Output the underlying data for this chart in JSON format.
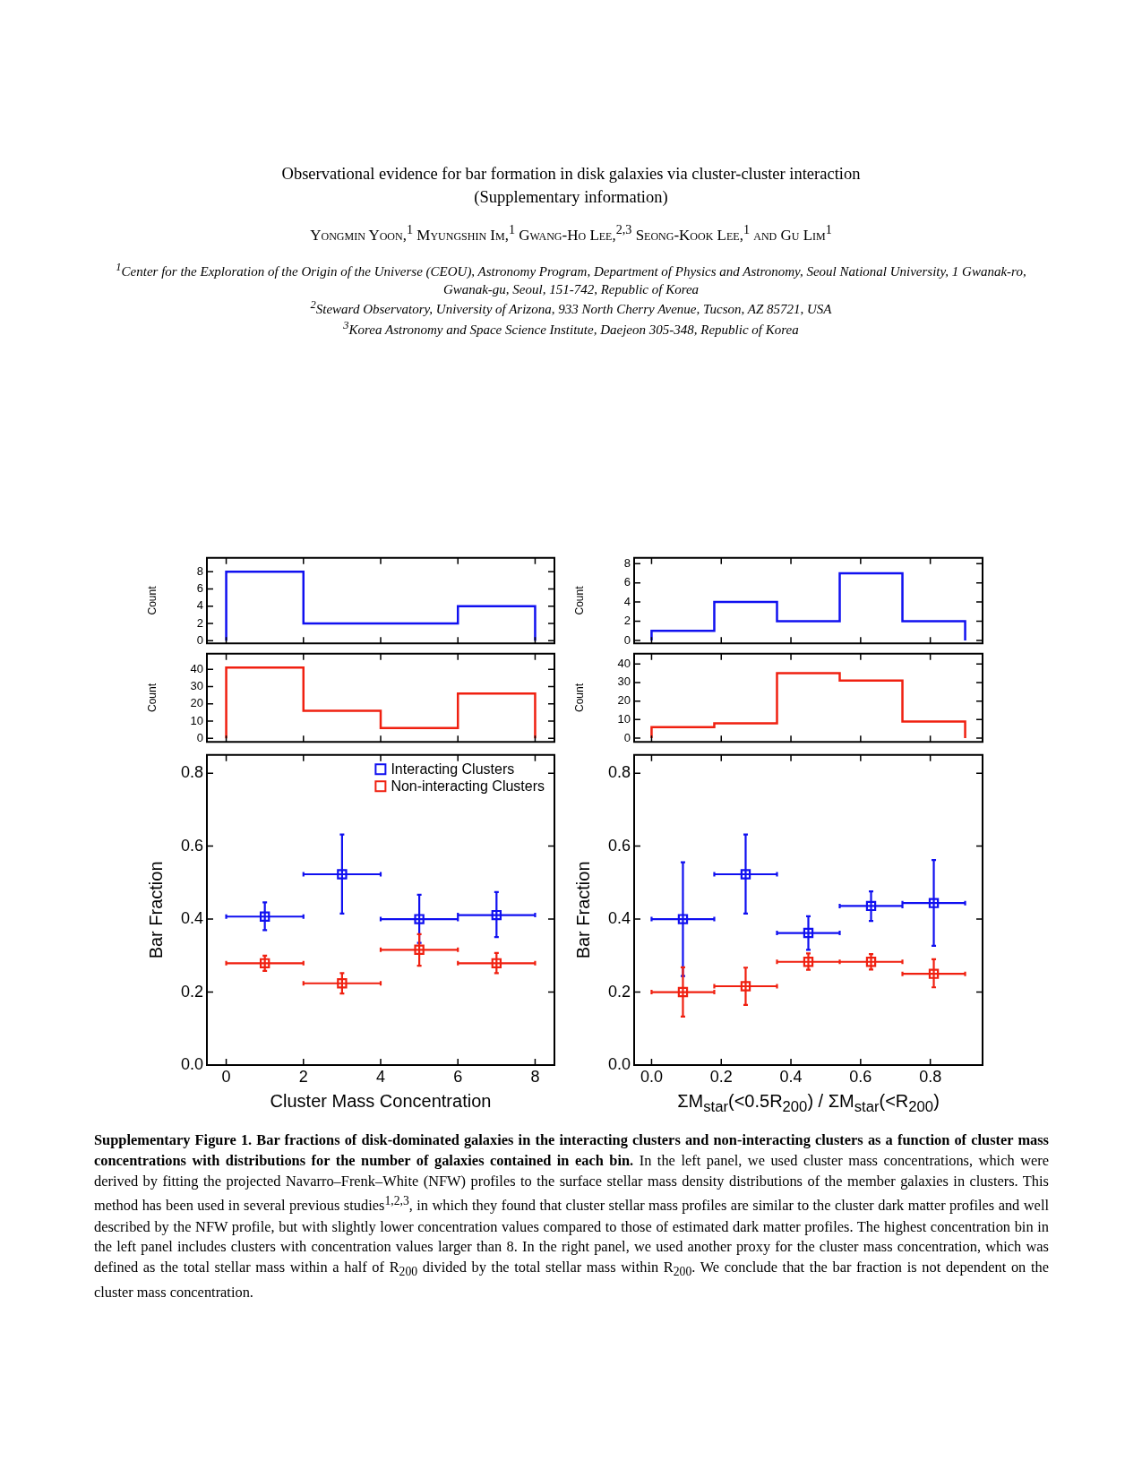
{
  "chart_data": [
    {
      "type": "other",
      "title": "Observational evidence for bar formation in disk galaxies via cluster-cluster interaction",
      "subtitle": "(Supplementary information)",
      "annotations": [
        "Yongmin Yoon,$^{1}$ Myungshin Im,$^{1}$ Gwang-Ho Lee,$^{2,3}$ Seong-Kook Lee,$^{1}$ and Gu Lim$^{1}$",
        "$^{1}$Center for the Exploration of the Origin of the Universe (CEOU), Astronomy Program, Department of Physics and Astronomy, Seoul National University, 1 Gwanak-ro, Gwanak-gu, Seoul, 151-742, Republic of Korea",
        "$^{2}$Steward Observatory, University of Arizona, 933 North Cherry Avenue, Tucson, AZ 85721, USA",
        "$^{3}$Korea Astronomy and Space Science Institute, Daejeon 305-348, Republic of Korea"
      ]
    },
    {
      "type": "histogram",
      "ylabel": "Count",
      "bins": [
        0,
        2,
        4,
        6,
        8
      ],
      "values": [
        8,
        2,
        2,
        4
      ],
      "color": "#1010f0",
      "xlim": [
        -0.5,
        8.5
      ],
      "xticks": [
        0,
        2,
        4,
        6,
        8
      ],
      "ylim": [
        -0.3,
        9.6
      ],
      "yticks": [
        0,
        2,
        4,
        6,
        8
      ],
      "tick_labels": "y"
    },
    {
      "type": "histogram",
      "ylabel": "Count",
      "bins": [
        0,
        0.18,
        0.36,
        0.54,
        0.72,
        0.9
      ],
      "values": [
        1,
        4,
        2,
        7,
        2
      ],
      "color": "#1010f0",
      "xlim": [
        -0.05,
        0.95
      ],
      "xticks": [
        0,
        0.2,
        0.4,
        0.6,
        0.8
      ],
      "ylim": [
        -0.3,
        8.6
      ],
      "yticks": [
        0,
        2,
        4,
        6,
        8
      ],
      "tick_labels": "y"
    },
    {
      "type": "histogram",
      "ylabel": "Count",
      "bins": [
        0,
        2,
        4,
        6,
        8
      ],
      "values": [
        41,
        16,
        6,
        26
      ],
      "color": "#f02010",
      "xlim": [
        -0.5,
        8.5
      ],
      "xticks": [
        0,
        2,
        4,
        6,
        8
      ],
      "ylim": [
        -2,
        49
      ],
      "yticks": [
        0,
        10,
        20,
        30,
        40
      ],
      "tick_labels": "y"
    },
    {
      "type": "histogram",
      "ylabel": "Count",
      "bins": [
        0,
        0.18,
        0.36,
        0.54,
        0.72,
        0.9
      ],
      "values": [
        6,
        8,
        35,
        31,
        9
      ],
      "color": "#f02010",
      "xlim": [
        -0.05,
        0.95
      ],
      "xticks": [
        0,
        0.2,
        0.4,
        0.6,
        0.8
      ],
      "ylim": [
        -2,
        45.5
      ],
      "yticks": [
        0,
        10,
        20,
        30,
        40
      ],
      "tick_labels": "y"
    },
    {
      "type": "scatter",
      "xlabel": "Cluster Mass Concentration",
      "ylabel": "Bar Fraction",
      "x": [
        1,
        3,
        5,
        7
      ],
      "marker": "square",
      "legend": "top right",
      "xlim": [
        -0.5,
        8.5
      ],
      "xticks": [
        0,
        2,
        4,
        6,
        8
      ],
      "ylim": [
        0,
        0.85
      ],
      "yticks": [
        {
          "value": 0,
          "label": "0.0"
        },
        {
          "value": 0.2,
          "label": "0.2"
        },
        {
          "value": 0.4,
          "label": "0.4"
        },
        {
          "value": 0.6,
          "label": "0.6"
        },
        {
          "value": 0.8,
          "label": "0.8"
        }
      ],
      "series": [
        {
          "name": "Interacting Clusters",
          "color": "#1010f0",
          "values": [
            0.407,
            0.523,
            0.4,
            0.411
          ],
          "errors": [
            [
              0.37,
              0.446
            ],
            [
              0.415,
              0.632
            ],
            [
              0.335,
              0.467
            ],
            [
              0.351,
              0.474
            ]
          ],
          "xerrors": [
            1,
            1,
            1,
            1
          ]
        },
        {
          "name": "Non-interacting Clusters",
          "color": "#f02010",
          "values": [
            0.279,
            0.224,
            0.316,
            0.279
          ],
          "errors": [
            [
              0.258,
              0.3
            ],
            [
              0.196,
              0.252
            ],
            [
              0.272,
              0.359
            ],
            [
              0.252,
              0.307
            ]
          ],
          "xerrors": [
            1,
            1,
            1,
            1
          ]
        }
      ]
    },
    {
      "type": "scatter",
      "xlabel": "ΣM$_{star}$(<0.5R$_{200}$) / ΣM$_{star}$(<R$_{200}$)",
      "ylabel": "Bar Fraction",
      "x": [
        0.09,
        0.27,
        0.45,
        0.63,
        0.81
      ],
      "marker": "square",
      "xlim": [
        -0.05,
        0.95
      ],
      "xticks": [
        {
          "value": 0,
          "label": "0.0"
        },
        {
          "value": 0.2,
          "label": "0.2"
        },
        {
          "value": 0.4,
          "label": "0.4"
        },
        {
          "value": 0.6,
          "label": "0.6"
        },
        {
          "value": 0.8,
          "label": "0.8"
        }
      ],
      "ylim": [
        0,
        0.85
      ],
      "yticks": [
        {
          "value": 0,
          "label": "0.0"
        },
        {
          "value": 0.2,
          "label": "0.2"
        },
        {
          "value": 0.4,
          "label": "0.4"
        },
        {
          "value": 0.6,
          "label": "0.6"
        },
        {
          "value": 0.8,
          "label": "0.8"
        }
      ],
      "series": [
        {
          "color": "#1010f0",
          "values": [
            0.4,
            0.523,
            0.362,
            0.436,
            0.444
          ],
          "errors": [
            [
              0.244,
              0.556
            ],
            [
              0.415,
              0.632
            ],
            [
              0.316,
              0.408
            ],
            [
              0.395,
              0.476
            ],
            [
              0.327,
              0.562
            ]
          ],
          "xerrors": [
            0.09,
            0.09,
            0.09,
            0.09,
            0.09
          ]
        },
        {
          "color": "#f02010",
          "values": [
            0.2,
            0.216,
            0.283,
            0.283,
            0.25
          ],
          "errors": [
            [
              0.133,
              0.268
            ],
            [
              0.165,
              0.267
            ],
            [
              0.261,
              0.306
            ],
            [
              0.262,
              0.304
            ],
            [
              0.213,
              0.29
            ]
          ],
          "xerrors": [
            0.09,
            0.09,
            0.09,
            0.09,
            0.09
          ]
        }
      ]
    },
    {
      "type": "other",
      "annotations": [
        "Supplementary Figure 1. Bar fractions of disk-dominated galaxies in the interacting clusters and non-interacting clusters as a function of cluster mass concentrations with distributions for the number of galaxies contained in each bin.",
        "In the left panel, we used cluster mass concentrations, which were derived by fitting the projected Navarro–Frenk–White (NFW) profiles to the surface stellar mass density distributions of the member galaxies in clusters. This method has been used in several previous studies$^{1,2,3}$, in which they found that cluster stellar mass profiles are similar to the cluster dark matter profiles and well described by the NFW profile, but with slightly lower concentration values compared to those of estimated dark matter profiles. The highest concentration bin in the left panel includes clusters with concentration values larger than 8. In the right panel, we used another proxy for the cluster mass concentration, which was defined as the total stellar mass within a half of R$_{200}$ divided by the total stellar mass within R$_{200}$. We conclude that the bar fraction is not dependent on the cluster mass concentration."
      ]
    }
  ]
}
